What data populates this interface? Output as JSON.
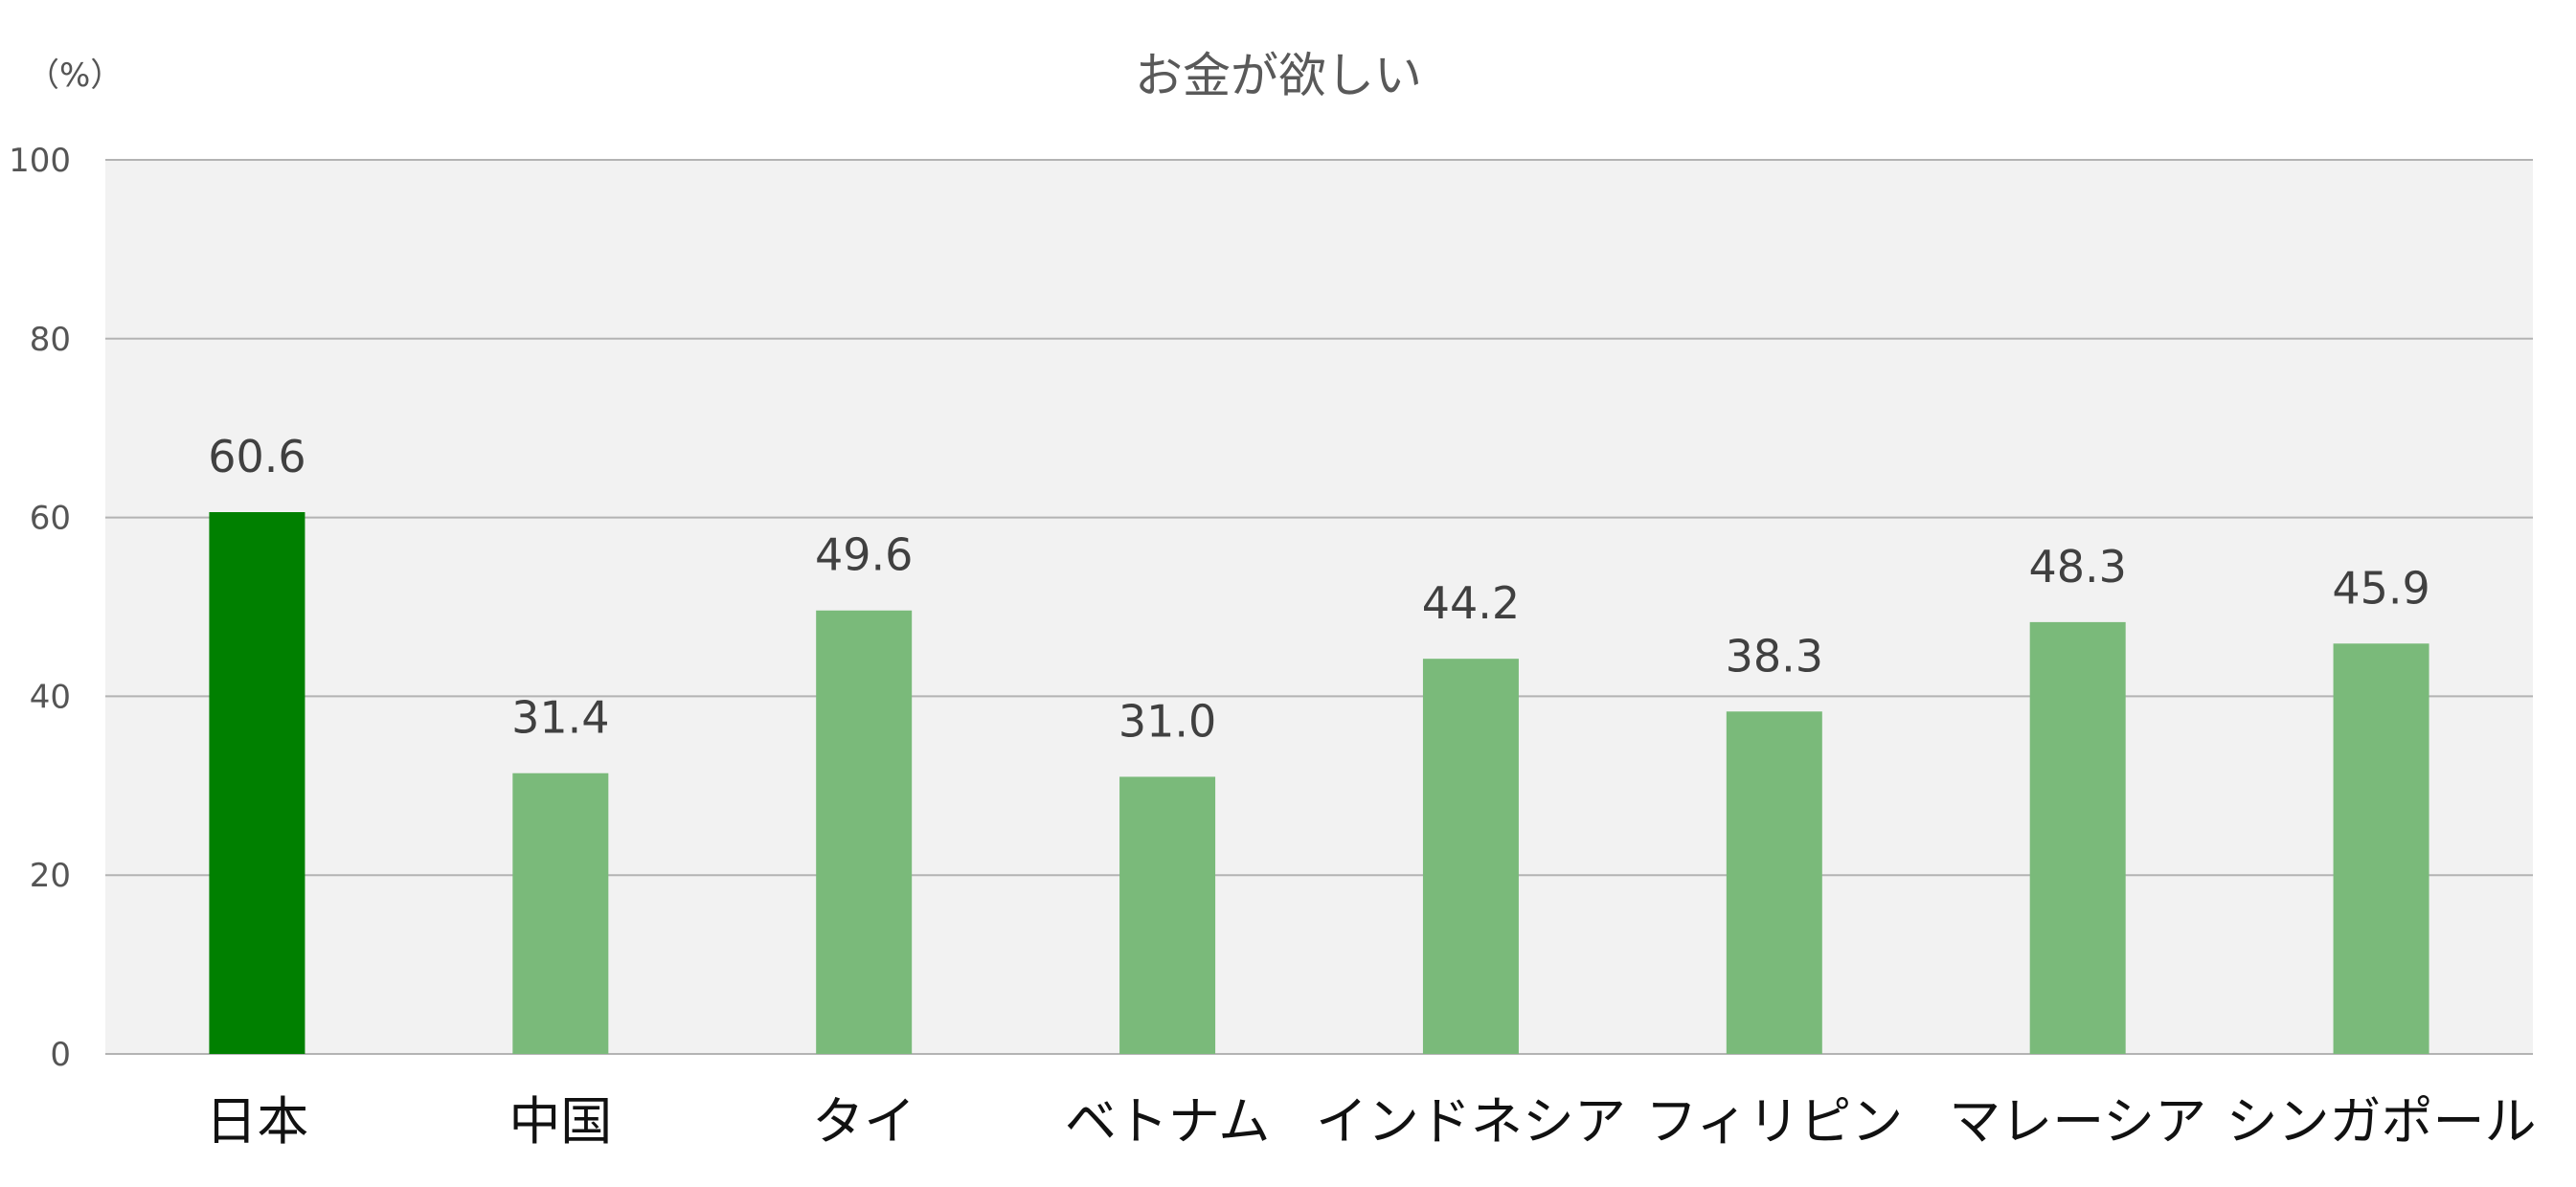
{
  "chart_data": {
    "type": "bar",
    "title": "お金が欲しい",
    "unit_label": "（%）",
    "categories": [
      "日本",
      "中国",
      "タイ",
      "ベトナム",
      "インドネシア",
      "フィリピン",
      "マレーシア",
      "シンガポール"
    ],
    "values": [
      60.6,
      31.4,
      49.6,
      31.0,
      44.2,
      38.3,
      48.3,
      45.9
    ],
    "value_labels": [
      "60.6",
      "31.4",
      "49.6",
      "31.0",
      "44.2",
      "38.3",
      "48.3",
      "45.9"
    ],
    "ylim": [
      0,
      100
    ],
    "yticks": [
      0,
      20,
      40,
      60,
      80,
      100
    ],
    "ytick_labels": [
      "0",
      "20",
      "40",
      "60",
      "80",
      "100"
    ],
    "grid": true,
    "xlabel": "",
    "ylabel": "",
    "colors": {
      "highlight": "#008000",
      "bar": "#7aba7a",
      "plot_background": "#f2f2f2",
      "gridline": "#b3b3b3"
    },
    "highlight_index": 0
  }
}
